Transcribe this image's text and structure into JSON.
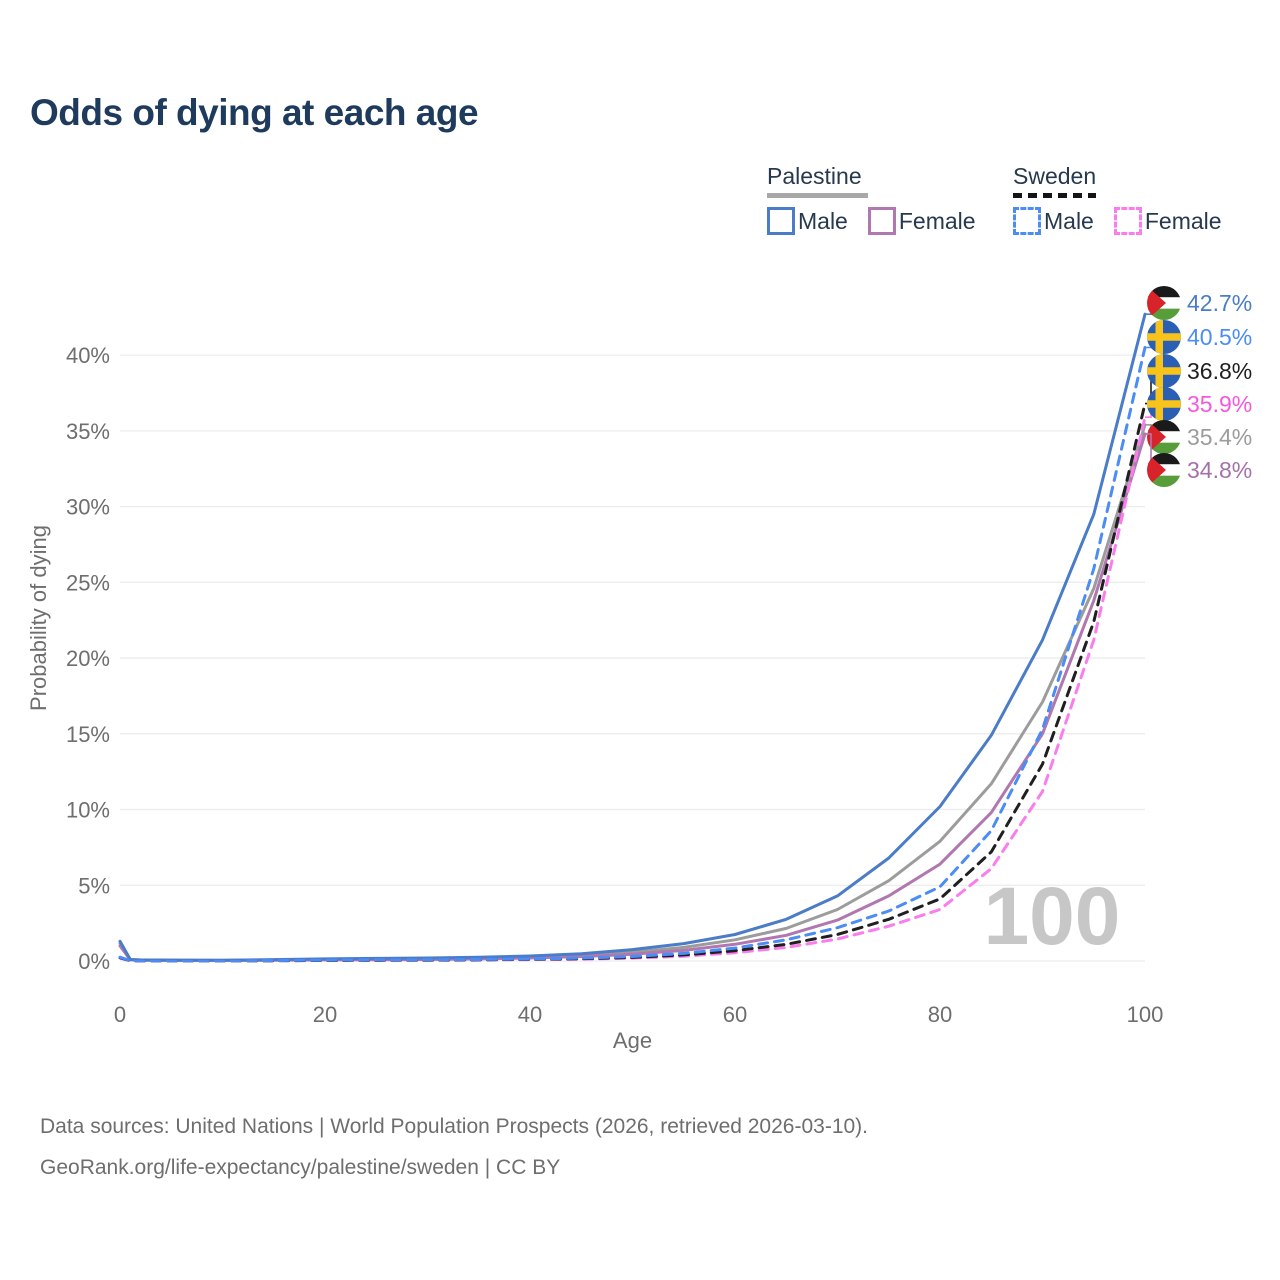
{
  "title": "Odds of dying at each age",
  "legend": {
    "groups": [
      {
        "name": "Palestine",
        "line": "solid",
        "underline_color": "#a8a8a8",
        "items": [
          {
            "label": "Male",
            "color": "#4a7cc7"
          },
          {
            "label": "Female",
            "color": "#b077b0"
          }
        ]
      },
      {
        "name": "Sweden",
        "line": "dashed",
        "underline_color": "#141414",
        "items": [
          {
            "label": "Male",
            "color": "#4b8cf5"
          },
          {
            "label": "Female",
            "color": "#fa7dee"
          }
        ]
      }
    ]
  },
  "watermark": "100",
  "footer": {
    "line1": "Data sources: United Nations | World Population Prospects (2026, retrieved 2026-03-10).",
    "line2": "GeoRank.org/life-expectancy/palestine/sweden | CC BY"
  },
  "chart_data": {
    "type": "line",
    "title": "Odds of dying at each age",
    "xlabel": "Age",
    "ylabel": "Probability of dying",
    "xlim": [
      0,
      100
    ],
    "ylim_percent": [
      0,
      44
    ],
    "xticks": [
      0,
      20,
      40,
      60,
      80,
      100
    ],
    "ytick_percents": [
      0,
      5,
      10,
      15,
      20,
      25,
      30,
      35,
      40
    ],
    "ytick_labels": [
      "0%",
      "5%",
      "10%",
      "15%",
      "20%",
      "25%",
      "30%",
      "35%",
      "40%"
    ],
    "grid": true,
    "legend_position": "top-right",
    "x": [
      0,
      1,
      2,
      5,
      10,
      15,
      20,
      25,
      30,
      35,
      40,
      45,
      50,
      55,
      60,
      65,
      70,
      75,
      80,
      85,
      90,
      95,
      100
    ],
    "series": [
      {
        "name": "Palestine Male",
        "country": "Palestine",
        "sex": "male",
        "line": "solid",
        "flag": "palestine",
        "color": "#4a7cc7",
        "label_color": "#4a7cc7",
        "end_label": "42.7%",
        "end_value": 42.7,
        "values": [
          1.3,
          0.1,
          0.07,
          0.06,
          0.05,
          0.09,
          0.14,
          0.17,
          0.2,
          0.25,
          0.33,
          0.48,
          0.75,
          1.15,
          1.75,
          2.75,
          4.3,
          6.8,
          10.2,
          14.9,
          21.2,
          29.5,
          42.7
        ]
      },
      {
        "name": "Sweden Male",
        "country": "Sweden",
        "sex": "male",
        "line": "dashed",
        "flag": "sweden",
        "color": "#4b8cf5",
        "label_color": "#4b8cf5",
        "end_label": "40.5%",
        "end_value": 40.5,
        "values": [
          0.25,
          0.02,
          0.015,
          0.01,
          0.01,
          0.03,
          0.06,
          0.07,
          0.08,
          0.1,
          0.13,
          0.19,
          0.3,
          0.5,
          0.85,
          1.4,
          2.2,
          3.3,
          4.9,
          8.6,
          15.3,
          25.9,
          40.5
        ]
      },
      {
        "name": "Sweden Both sexes",
        "country": "Sweden",
        "sex": "both",
        "line": "dashed",
        "flag": "sweden",
        "color": "#1f1f1f",
        "label_color": "#212121",
        "end_label": "36.8%",
        "end_value": 36.8,
        "values": [
          0.22,
          0.02,
          0.012,
          0.01,
          0.01,
          0.02,
          0.04,
          0.05,
          0.06,
          0.08,
          0.11,
          0.15,
          0.24,
          0.4,
          0.68,
          1.1,
          1.75,
          2.75,
          4.1,
          7.2,
          13.0,
          22.4,
          36.8
        ]
      },
      {
        "name": "Sweden Female",
        "country": "Sweden",
        "sex": "female",
        "line": "dashed",
        "flag": "sweden",
        "color": "#fa7dee",
        "label_color": "#f558dc",
        "end_label": "35.9%",
        "end_value": 35.9,
        "values": [
          0.2,
          0.015,
          0.01,
          0.008,
          0.008,
          0.02,
          0.03,
          0.035,
          0.045,
          0.06,
          0.09,
          0.12,
          0.19,
          0.32,
          0.55,
          0.9,
          1.45,
          2.3,
          3.4,
          6.1,
          11.2,
          21.2,
          35.9
        ]
      },
      {
        "name": "Palestine Both sexes",
        "country": "Palestine",
        "sex": "both",
        "line": "solid",
        "flag": "palestine",
        "color": "#9c9c9c",
        "label_color": "#9c9c9c",
        "end_label": "35.4%",
        "end_value": 35.4,
        "values": [
          1.15,
          0.09,
          0.06,
          0.05,
          0.04,
          0.07,
          0.1,
          0.12,
          0.15,
          0.19,
          0.26,
          0.38,
          0.58,
          0.9,
          1.4,
          2.15,
          3.4,
          5.3,
          7.9,
          11.7,
          17.1,
          24.6,
          35.4
        ]
      },
      {
        "name": "Palestine Female",
        "country": "Palestine",
        "sex": "female",
        "line": "solid",
        "flag": "palestine",
        "color": "#b077b0",
        "label_color": "#a671a9",
        "end_label": "34.8%",
        "end_value": 34.8,
        "values": [
          1.0,
          0.08,
          0.05,
          0.04,
          0.035,
          0.05,
          0.07,
          0.08,
          0.1,
          0.14,
          0.2,
          0.3,
          0.45,
          0.7,
          1.1,
          1.7,
          2.7,
          4.3,
          6.4,
          9.8,
          15.0,
          23.8,
          34.8
        ]
      }
    ],
    "flag_colors": {
      "palestine": {
        "black": "#1a1a1a",
        "white": "#ffffff",
        "green": "#579e3a",
        "red": "#d8232a"
      },
      "sweden": {
        "blue": "#2a5fb4",
        "yellow": "#f8c31a"
      }
    }
  }
}
